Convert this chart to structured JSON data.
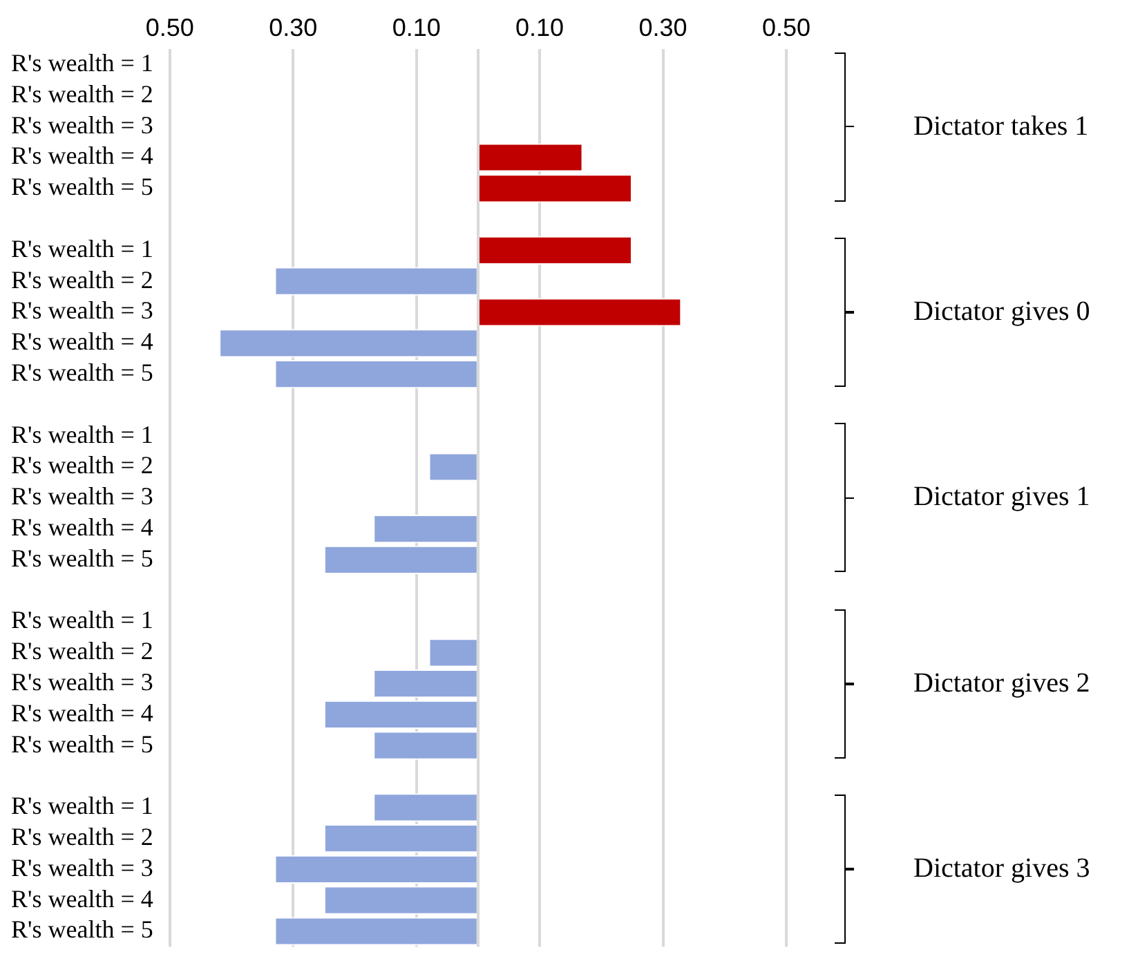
{
  "chart_data": {
    "type": "bar",
    "orientation": "horizontal",
    "categories": [
      "R's wealth = 1",
      "R's wealth = 2",
      "R's wealth = 3",
      "R's wealth = 4",
      "R's wealth = 5",
      null,
      "R's wealth = 1",
      "R's wealth = 2",
      "R's wealth = 3",
      "R's wealth = 4",
      "R's wealth = 5",
      null,
      "R's wealth = 1",
      "R's wealth = 2",
      "R's wealth = 3",
      "R's wealth = 4",
      "R's wealth = 5",
      null,
      "R's wealth = 1",
      "R's wealth = 2",
      "R's wealth = 3",
      "R's wealth = 4",
      "R's wealth = 5",
      null,
      "R's wealth = 1",
      "R's wealth = 2",
      "R's wealth = 3",
      "R's wealth = 4",
      "R's wealth = 5"
    ],
    "values": [
      null,
      null,
      null,
      0.17,
      0.25,
      null,
      0.25,
      -0.33,
      0.33,
      -0.42,
      -0.33,
      null,
      null,
      -0.08,
      null,
      -0.17,
      -0.25,
      null,
      null,
      -0.08,
      -0.17,
      -0.25,
      -0.17,
      null,
      -0.17,
      -0.25,
      -0.33,
      -0.25,
      -0.33
    ],
    "colors": [
      "#c00000",
      "#c00000",
      "#c00000",
      "#c00000",
      "#c00000",
      "#c00000",
      "#c00000",
      "#8fa6dc",
      "#c00000",
      "#8fa6dc",
      "#8fa6dc",
      "#8fa6dc",
      "#8fa6dc",
      "#8fa6dc",
      "#8fa6dc",
      "#8fa6dc",
      "#8fa6dc",
      "#8fa6dc",
      "#8fa6dc",
      "#8fa6dc",
      "#8fa6dc",
      "#8fa6dc",
      "#8fa6dc",
      "#8fa6dc",
      "#8fa6dc",
      "#8fa6dc",
      "#8fa6dc",
      "#8fa6dc",
      "#8fa6dc"
    ],
    "xlim": [
      -0.5,
      0.5
    ],
    "xticks": [
      {
        "value": -0.5,
        "label": "0.50"
      },
      {
        "value": -0.3,
        "label": "0.30"
      },
      {
        "value": -0.1,
        "label": "0.10"
      },
      {
        "value": 0,
        "label": null
      },
      {
        "value": 0.1,
        "label": "0.10"
      },
      {
        "value": 0.3,
        "label": "0.30"
      },
      {
        "value": 0.5,
        "label": "0.50"
      }
    ],
    "grid": "x",
    "legend": false,
    "annotations": [
      "Dictator takes 1",
      "Dictator gives 0",
      "Dictator gives 1",
      "Dictator gives 2",
      "Dictator gives 3"
    ]
  }
}
